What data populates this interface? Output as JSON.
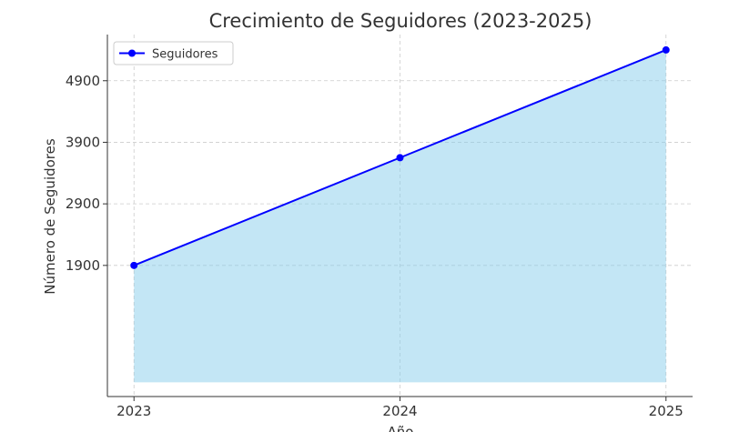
{
  "chart_data": {
    "type": "line",
    "title": "Crecimiento de Seguidores (2023-2025)",
    "x_label": "Año",
    "y_label": "Número de Seguidores",
    "x": [
      2023,
      2024,
      2025
    ],
    "series": [
      {
        "name": "Seguidores",
        "color": "#0000ff",
        "fill": "#87ceeb",
        "values": [
          1900,
          3650,
          5400
        ]
      }
    ],
    "xlim": [
      2022.9,
      2025.1
    ],
    "xticks": [
      2023,
      2024,
      2025
    ],
    "ylim": [
      -230,
      5650
    ],
    "yticks": [
      1900,
      2900,
      3900,
      4900
    ],
    "grid": true,
    "legend": "upper left"
  }
}
